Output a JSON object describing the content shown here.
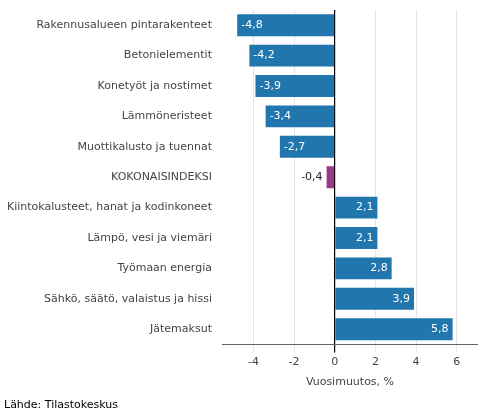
{
  "chart_data": {
    "type": "bar",
    "orientation": "horizontal",
    "categories": [
      "Rakennusalueen pintarakenteet",
      "Betonielementit",
      "Konetyöt ja nostimet",
      "Lämmöneristeet",
      "Muottikalusto ja tuennat",
      "KOKONAISINDEKSI",
      "Kiintokalusteet, hanat ja kodinkoneet",
      "Lämpö, vesi ja viemäri",
      "Työmaan energia",
      "Sähkö, säätö, valaistus ja hissi",
      "Jätemaksut"
    ],
    "values": [
      -4.8,
      -4.2,
      -3.9,
      -3.4,
      -2.7,
      -0.4,
      2.1,
      2.1,
      2.8,
      3.9,
      5.8
    ],
    "value_labels": [
      "-4,8",
      "-4,2",
      "-3,9",
      "-3,4",
      "-2,7",
      "-0,4",
      "2,1",
      "2,1",
      "2,8",
      "3,9",
      "5,8"
    ],
    "data_labels": true,
    "colors": [
      "#2176ae",
      "#2176ae",
      "#2176ae",
      "#2176ae",
      "#2176ae",
      "#9b3a8a",
      "#2176ae",
      "#2176ae",
      "#2176ae",
      "#2176ae",
      "#2176ae"
    ],
    "xlabel": "Vuosimuutos, %",
    "xlim": [
      -5.5,
      7.0
    ],
    "xticks": [
      -4,
      -2,
      0,
      2,
      4,
      6
    ],
    "grid": true,
    "source": "Lähde: Tilastokeskus"
  }
}
